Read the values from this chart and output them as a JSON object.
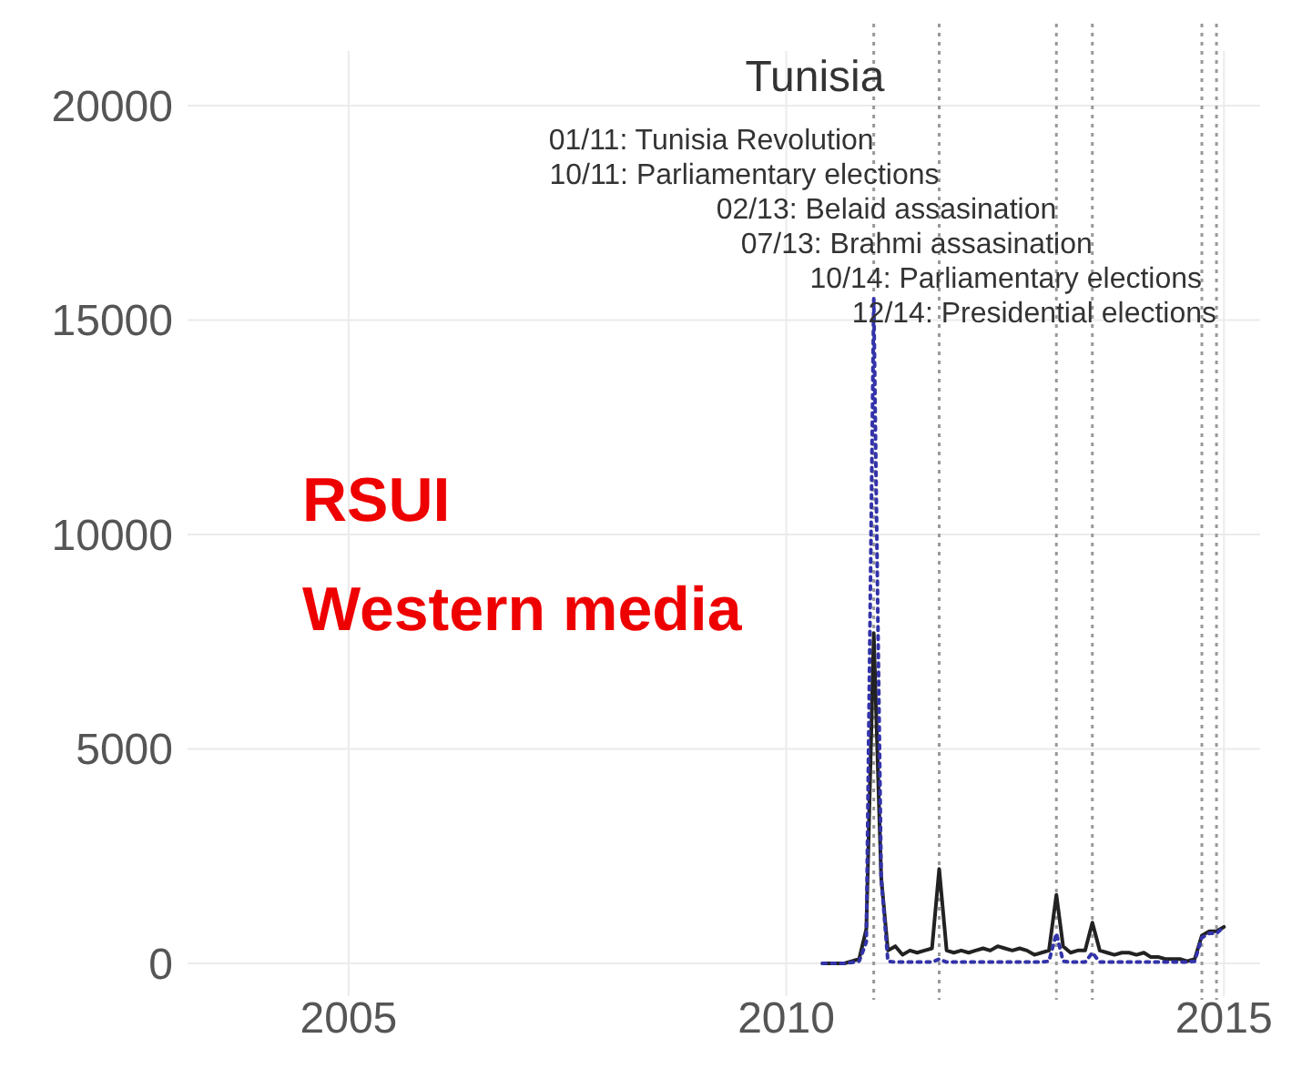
{
  "chart_data": {
    "type": "line",
    "title": "Tunisia",
    "xlim": [
      "2003-03",
      "2015-06"
    ],
    "xticks": [
      {
        "value": "2005",
        "label": "2005"
      },
      {
        "value": "2010",
        "label": "2010"
      },
      {
        "value": "2015",
        "label": "2015"
      }
    ],
    "ylim": [
      0,
      20000
    ],
    "yticks": [
      0,
      5000,
      10000,
      15000,
      20000
    ],
    "grid": true,
    "x": [
      "2010-06",
      "2010-07",
      "2010-08",
      "2010-09",
      "2010-10",
      "2010-11",
      "2010-12",
      "2011-01",
      "2011-02",
      "2011-03",
      "2011-04",
      "2011-05",
      "2011-06",
      "2011-07",
      "2011-08",
      "2011-09",
      "2011-10",
      "2011-11",
      "2011-12",
      "2012-01",
      "2012-02",
      "2012-03",
      "2012-04",
      "2012-05",
      "2012-06",
      "2012-07",
      "2012-08",
      "2012-09",
      "2012-10",
      "2012-11",
      "2012-12",
      "2013-01",
      "2013-02",
      "2013-03",
      "2013-04",
      "2013-05",
      "2013-06",
      "2013-07",
      "2013-08",
      "2013-09",
      "2013-10",
      "2013-11",
      "2013-12",
      "2014-01",
      "2014-02",
      "2014-03",
      "2014-04",
      "2014-05",
      "2014-06",
      "2014-07",
      "2014-08",
      "2014-09",
      "2014-10",
      "2014-11",
      "2014-12",
      "2015-01"
    ],
    "series": [
      {
        "color": "#222222",
        "line_style": "solid",
        "values": [
          0,
          0,
          0,
          0,
          50,
          100,
          800,
          7700,
          2000,
          300,
          400,
          200,
          300,
          250,
          300,
          350,
          2200,
          300,
          250,
          300,
          250,
          300,
          350,
          300,
          400,
          350,
          300,
          350,
          300,
          200,
          250,
          300,
          1600,
          400,
          250,
          300,
          300,
          950,
          300,
          250,
          200,
          250,
          250,
          200,
          250,
          150,
          150,
          100,
          100,
          100,
          50,
          100,
          650,
          750,
          750,
          850
        ]
      },
      {
        "color": "#3333aa",
        "line_style": "dotted",
        "values": [
          0,
          0,
          0,
          0,
          20,
          50,
          500,
          15500,
          2000,
          50,
          30,
          30,
          30,
          30,
          30,
          30,
          100,
          30,
          30,
          30,
          30,
          30,
          30,
          30,
          30,
          30,
          30,
          30,
          30,
          30,
          30,
          50,
          700,
          50,
          30,
          30,
          30,
          250,
          30,
          30,
          30,
          30,
          30,
          30,
          30,
          30,
          30,
          30,
          30,
          30,
          30,
          50,
          600,
          700,
          700,
          850
        ]
      }
    ],
    "ref_lines": [
      {
        "axis": "x",
        "value": "2011-01",
        "label": "01/11: Tunisia Revolution",
        "color": "#999999",
        "line_style": "dotted"
      },
      {
        "axis": "x",
        "value": "2011-10",
        "label": "10/11: Parliamentary elections",
        "color": "#999999",
        "line_style": "dotted"
      },
      {
        "axis": "x",
        "value": "2013-02",
        "label": "02/13: Belaid assasination",
        "color": "#999999",
        "line_style": "dotted"
      },
      {
        "axis": "x",
        "value": "2013-07",
        "label": "07/13: Brahmi assasination",
        "color": "#999999",
        "line_style": "dotted"
      },
      {
        "axis": "x",
        "value": "2014-10",
        "label": "10/14: Parliamentary elections",
        "color": "#999999",
        "line_style": "dotted"
      },
      {
        "axis": "x",
        "value": "2014-12",
        "label": "12/14: Presidential elections",
        "color": "#999999",
        "line_style": "dotted"
      }
    ],
    "annotations": [
      "RSUI",
      "Western media"
    ]
  }
}
